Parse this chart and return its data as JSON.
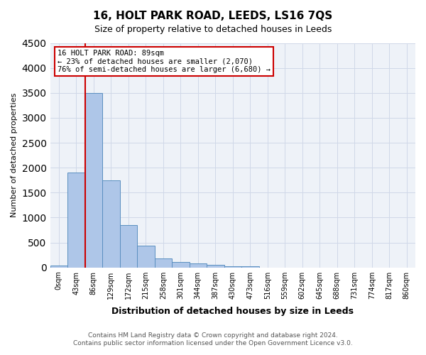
{
  "title": "16, HOLT PARK ROAD, LEEDS, LS16 7QS",
  "subtitle": "Size of property relative to detached houses in Leeds",
  "xlabel": "Distribution of detached houses by size in Leeds",
  "ylabel": "Number of detached properties",
  "property_label": "16 HOLT PARK ROAD: 89sqm",
  "annotation_line1": "← 23% of detached houses are smaller (2,070)",
  "annotation_line2": "76% of semi-detached houses are larger (6,680) →",
  "footnote1": "Contains HM Land Registry data © Crown copyright and database right 2024.",
  "footnote2": "Contains public sector information licensed under the Open Government Licence v3.0.",
  "bin_labels": [
    "0sqm",
    "43sqm",
    "86sqm",
    "129sqm",
    "172sqm",
    "215sqm",
    "258sqm",
    "301sqm",
    "344sqm",
    "387sqm",
    "430sqm",
    "473sqm",
    "516sqm",
    "559sqm",
    "602sqm",
    "645sqm",
    "688sqm",
    "731sqm",
    "774sqm",
    "817sqm",
    "860sqm"
  ],
  "bar_values": [
    40,
    1900,
    3500,
    1750,
    850,
    440,
    175,
    105,
    75,
    45,
    30,
    20,
    0,
    0,
    0,
    0,
    0,
    0,
    0,
    0,
    0
  ],
  "bar_color": "#aec6e8",
  "bar_edge_color": "#5a8fc0",
  "red_line_x": 1.5,
  "red_line_color": "#cc0000",
  "annotation_box_color": "#cc0000",
  "grid_color": "#d0d8e8",
  "background_color": "#eef2f8",
  "ylim": [
    0,
    4500
  ],
  "yticks": [
    0,
    500,
    1000,
    1500,
    2000,
    2500,
    3000,
    3500,
    4000,
    4500
  ]
}
